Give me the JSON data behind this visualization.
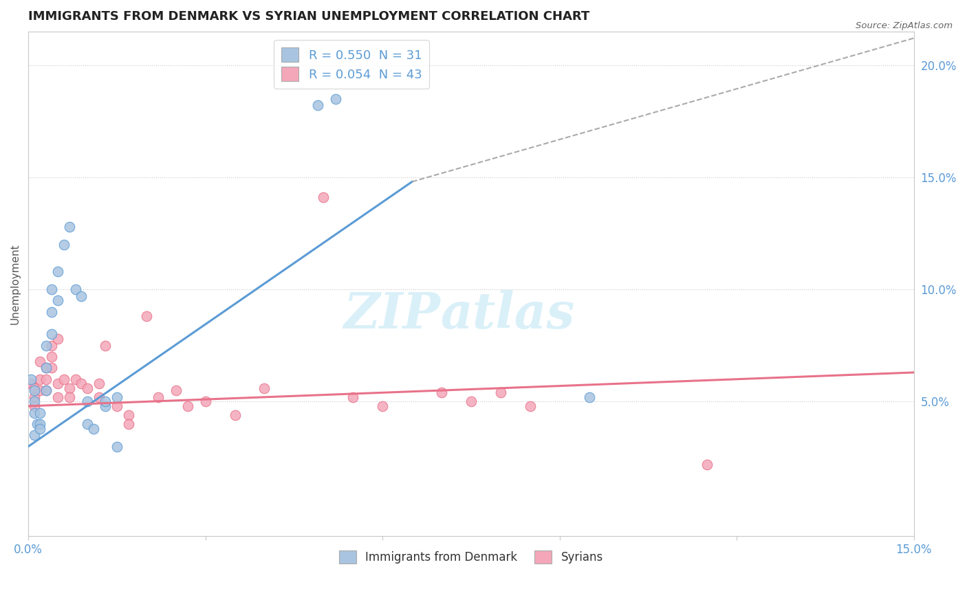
{
  "title": "IMMIGRANTS FROM DENMARK VS SYRIAN UNEMPLOYMENT CORRELATION CHART",
  "source": "Source: ZipAtlas.com",
  "ylabel": "Unemployment",
  "x_min": 0.0,
  "x_max": 0.15,
  "y_min": -0.01,
  "y_max": 0.215,
  "x_ticks": [
    0.0,
    0.03,
    0.06,
    0.09,
    0.12,
    0.15
  ],
  "x_tick_labels": [
    "0.0%",
    "",
    "",
    "",
    "",
    "15.0%"
  ],
  "y_ticks_right": [
    0.05,
    0.1,
    0.15,
    0.2
  ],
  "y_tick_labels_right": [
    "5.0%",
    "10.0%",
    "15.0%",
    "20.0%"
  ],
  "legend_entries": [
    {
      "label": "R = 0.550  N = 31",
      "color": "#a8c4e0"
    },
    {
      "label": "R = 0.054  N = 43",
      "color": "#f4a7b9"
    }
  ],
  "legend_labels_bottom": [
    "Immigrants from Denmark",
    "Syrians"
  ],
  "blue_scatter": [
    [
      0.0005,
      0.06
    ],
    [
      0.001,
      0.055
    ],
    [
      0.001,
      0.05
    ],
    [
      0.001,
      0.045
    ],
    [
      0.001,
      0.035
    ],
    [
      0.0015,
      0.04
    ],
    [
      0.002,
      0.045
    ],
    [
      0.002,
      0.04
    ],
    [
      0.002,
      0.038
    ],
    [
      0.003,
      0.075
    ],
    [
      0.003,
      0.065
    ],
    [
      0.003,
      0.055
    ],
    [
      0.004,
      0.09
    ],
    [
      0.004,
      0.08
    ],
    [
      0.004,
      0.1
    ],
    [
      0.005,
      0.108
    ],
    [
      0.005,
      0.095
    ],
    [
      0.006,
      0.12
    ],
    [
      0.007,
      0.128
    ],
    [
      0.008,
      0.1
    ],
    [
      0.009,
      0.097
    ],
    [
      0.01,
      0.05
    ],
    [
      0.01,
      0.04
    ],
    [
      0.011,
      0.038
    ],
    [
      0.013,
      0.048
    ],
    [
      0.013,
      0.05
    ],
    [
      0.015,
      0.052
    ],
    [
      0.015,
      0.03
    ],
    [
      0.049,
      0.182
    ],
    [
      0.052,
      0.185
    ],
    [
      0.095,
      0.052
    ]
  ],
  "pink_scatter": [
    [
      0.0005,
      0.058
    ],
    [
      0.001,
      0.056
    ],
    [
      0.001,
      0.052
    ],
    [
      0.001,
      0.048
    ],
    [
      0.002,
      0.068
    ],
    [
      0.002,
      0.06
    ],
    [
      0.002,
      0.055
    ],
    [
      0.003,
      0.065
    ],
    [
      0.003,
      0.06
    ],
    [
      0.003,
      0.055
    ],
    [
      0.004,
      0.075
    ],
    [
      0.004,
      0.07
    ],
    [
      0.004,
      0.065
    ],
    [
      0.005,
      0.078
    ],
    [
      0.005,
      0.058
    ],
    [
      0.005,
      0.052
    ],
    [
      0.006,
      0.06
    ],
    [
      0.007,
      0.056
    ],
    [
      0.007,
      0.052
    ],
    [
      0.008,
      0.06
    ],
    [
      0.009,
      0.058
    ],
    [
      0.01,
      0.056
    ],
    [
      0.012,
      0.058
    ],
    [
      0.012,
      0.052
    ],
    [
      0.013,
      0.075
    ],
    [
      0.015,
      0.048
    ],
    [
      0.017,
      0.044
    ],
    [
      0.017,
      0.04
    ],
    [
      0.02,
      0.088
    ],
    [
      0.022,
      0.052
    ],
    [
      0.025,
      0.055
    ],
    [
      0.027,
      0.048
    ],
    [
      0.03,
      0.05
    ],
    [
      0.035,
      0.044
    ],
    [
      0.04,
      0.056
    ],
    [
      0.05,
      0.141
    ],
    [
      0.055,
      0.052
    ],
    [
      0.06,
      0.048
    ],
    [
      0.07,
      0.054
    ],
    [
      0.075,
      0.05
    ],
    [
      0.08,
      0.054
    ],
    [
      0.085,
      0.048
    ],
    [
      0.115,
      0.022
    ]
  ],
  "blue_line_solid": [
    [
      0.0,
      0.03
    ],
    [
      0.065,
      0.148
    ]
  ],
  "blue_line_dashed": [
    [
      0.065,
      0.148
    ],
    [
      0.15,
      0.212
    ]
  ],
  "pink_line": [
    [
      0.0,
      0.048
    ],
    [
      0.15,
      0.063
    ]
  ],
  "blue_color": "#5b9bd5",
  "pink_color": "#e8728a",
  "blue_scatter_color": "#a8c4e0",
  "pink_scatter_color": "#f4a7b9",
  "watermark": "ZIPatlas",
  "grid_color": "#c8c8c8",
  "background_color": "#ffffff",
  "axis_label_color": "#5b9bd5"
}
